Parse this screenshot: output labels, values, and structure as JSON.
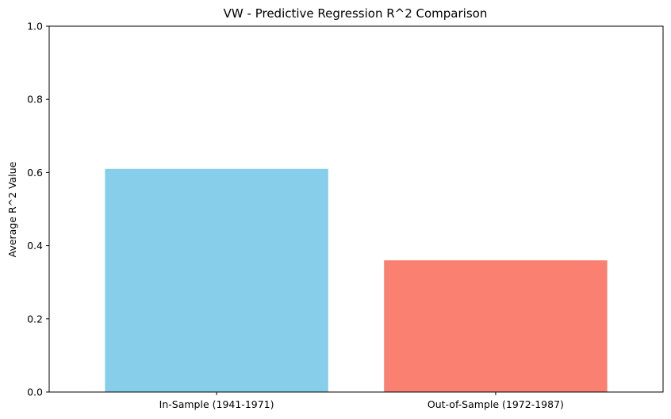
{
  "chart_data": {
    "type": "bar",
    "title": "VW - Predictive Regression R^2 Comparison",
    "xlabel": "",
    "ylabel": "Average R^2 Value",
    "categories": [
      "In-Sample (1941-1971)",
      "Out-of-Sample (1972-1987)"
    ],
    "values": [
      0.61,
      0.36
    ],
    "colors": [
      "#87CEEB",
      "#FA8072"
    ],
    "ylim": [
      0,
      1
    ],
    "yticks": [
      "0.0",
      "0.2",
      "0.4",
      "0.6",
      "0.8",
      "1.0"
    ],
    "grid": false,
    "legend": "none"
  }
}
